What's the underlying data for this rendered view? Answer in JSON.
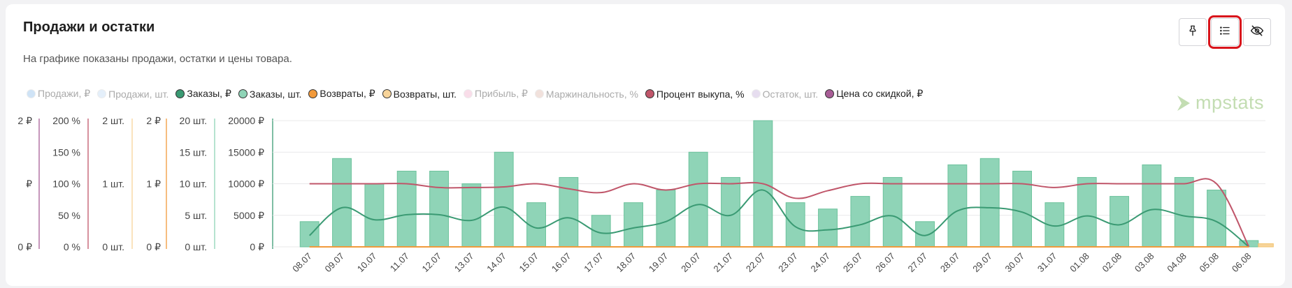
{
  "header": {
    "title": "Продажи и остатки",
    "subtitle": "На графике показаны продажи, остатки и цены товара."
  },
  "toolbar": {
    "buttons": [
      {
        "name": "pin-icon"
      },
      {
        "name": "list-icon",
        "active": true,
        "highlight_color": "#d9141b"
      },
      {
        "name": "eye-off-icon"
      }
    ]
  },
  "logo": {
    "text": "mpstats"
  },
  "legend": [
    {
      "label": "Продажи, ₽",
      "color": "#a9cdf0",
      "enabled": false
    },
    {
      "label": "Продажи, шт.",
      "color": "#cfe3f6",
      "enabled": false
    },
    {
      "label": "Заказы, ₽",
      "color": "#3a9a73",
      "enabled": true
    },
    {
      "label": "Заказы, шт.",
      "color": "#8fd4b7",
      "enabled": true
    },
    {
      "label": "Возвраты, ₽",
      "color": "#f29a3b",
      "enabled": true
    },
    {
      "label": "Возвраты, шт.",
      "color": "#f7d49a",
      "enabled": true
    },
    {
      "label": "Прибыль, ₽",
      "color": "#f5c2d8",
      "enabled": false
    },
    {
      "label": "Маржинальность, %",
      "color": "#e6c9c0",
      "enabled": false
    },
    {
      "label": "Процент выкупа, %",
      "color": "#c0566a",
      "enabled": true
    },
    {
      "label": "Остаток, шт.",
      "color": "#d3c3e3",
      "enabled": false
    },
    {
      "label": "Цена со скидкой, ₽",
      "color": "#a85d96",
      "enabled": true
    }
  ],
  "chart_data": {
    "type": "bar",
    "categories": [
      "08.07",
      "09.07",
      "10.07",
      "11.07",
      "12.07",
      "13.07",
      "14.07",
      "15.07",
      "16.07",
      "17.07",
      "18.07",
      "19.07",
      "20.07",
      "21.07",
      "22.07",
      "23.07",
      "24.07",
      "25.07",
      "26.07",
      "27.07",
      "28.07",
      "29.07",
      "30.07",
      "31.07",
      "01.08",
      "02.08",
      "03.08",
      "04.08",
      "05.08",
      "06.08"
    ],
    "axes": [
      {
        "ticks": [
          "0 ₽",
          "₽",
          "2 ₽"
        ],
        "color": "#a85d96"
      },
      {
        "ticks": [
          "0 %",
          "50 %",
          "100 %",
          "150 %",
          "200 %"
        ],
        "color": "#c0566a",
        "ylim": [
          0,
          200
        ]
      },
      {
        "ticks": [
          "0 шт.",
          "1 шт.",
          "2 шт."
        ],
        "color": "#f7d49a",
        "ylim": [
          0,
          2
        ]
      },
      {
        "ticks": [
          "0 ₽",
          "1 ₽",
          "2 ₽"
        ],
        "color": "#f29a3b",
        "ylim": [
          0,
          2
        ]
      },
      {
        "ticks": [
          "0 шт.",
          "5 шт.",
          "10 шт.",
          "15 шт.",
          "20 шт."
        ],
        "color": "#8fd4b7",
        "ylim": [
          0,
          20
        ]
      },
      {
        "ticks": [
          "0 ₽",
          "5000 ₽",
          "10000 ₽",
          "15000 ₽",
          "20000 ₽"
        ],
        "color": "#3a9a73",
        "ylim": [
          0,
          20000
        ]
      }
    ],
    "series": [
      {
        "name": "Заказы, шт.",
        "type": "bar",
        "color": "#8fd4b7",
        "axis": 4,
        "values": [
          4,
          14,
          10,
          12,
          12,
          10,
          15,
          7,
          11,
          5,
          7,
          9,
          15,
          11,
          20,
          7,
          6,
          8,
          11,
          4,
          13,
          14,
          12,
          7,
          11,
          8,
          13,
          11,
          9,
          1
        ]
      },
      {
        "name": "Заказы, ₽",
        "type": "line",
        "color": "#3a9a73",
        "axis": 5,
        "values": [
          1800,
          6200,
          4300,
          5100,
          5100,
          4200,
          6300,
          3000,
          4600,
          2200,
          3000,
          4000,
          6700,
          5000,
          9000,
          3200,
          2700,
          3500,
          4900,
          1800,
          5700,
          6200,
          5500,
          3300,
          4900,
          3500,
          5900,
          4900,
          4000,
          0
        ]
      },
      {
        "name": "Процент выкупа, %",
        "type": "line",
        "color": "#c0566a",
        "axis": 1,
        "values": [
          100,
          100,
          100,
          100,
          94,
          94,
          95,
          100,
          92,
          86,
          100,
          90,
          100,
          100,
          100,
          77,
          89,
          100,
          100,
          100,
          100,
          100,
          100,
          94,
          100,
          100,
          100,
          100,
          100,
          0
        ]
      },
      {
        "name": "Возвраты, ₽",
        "type": "line",
        "color": "#f29a3b",
        "axis": 3,
        "values": [
          0,
          0,
          0,
          0,
          0,
          0,
          0,
          0,
          0,
          0,
          0,
          0,
          0,
          0,
          0,
          0,
          0,
          0,
          0,
          0,
          0,
          0,
          0,
          0,
          0,
          0,
          0,
          0,
          0,
          0
        ]
      },
      {
        "name": "Возвраты, шт.",
        "type": "bar",
        "color": "#f7d49a",
        "axis": 2,
        "values": [
          0,
          0,
          0,
          0,
          0,
          0,
          0,
          0,
          0,
          0,
          0,
          0,
          0,
          0,
          0,
          0,
          0,
          0,
          0,
          0,
          0,
          0,
          0,
          0,
          0,
          0,
          0,
          0,
          0,
          0.05
        ]
      }
    ],
    "grid": true,
    "legend_position": "top-left"
  }
}
